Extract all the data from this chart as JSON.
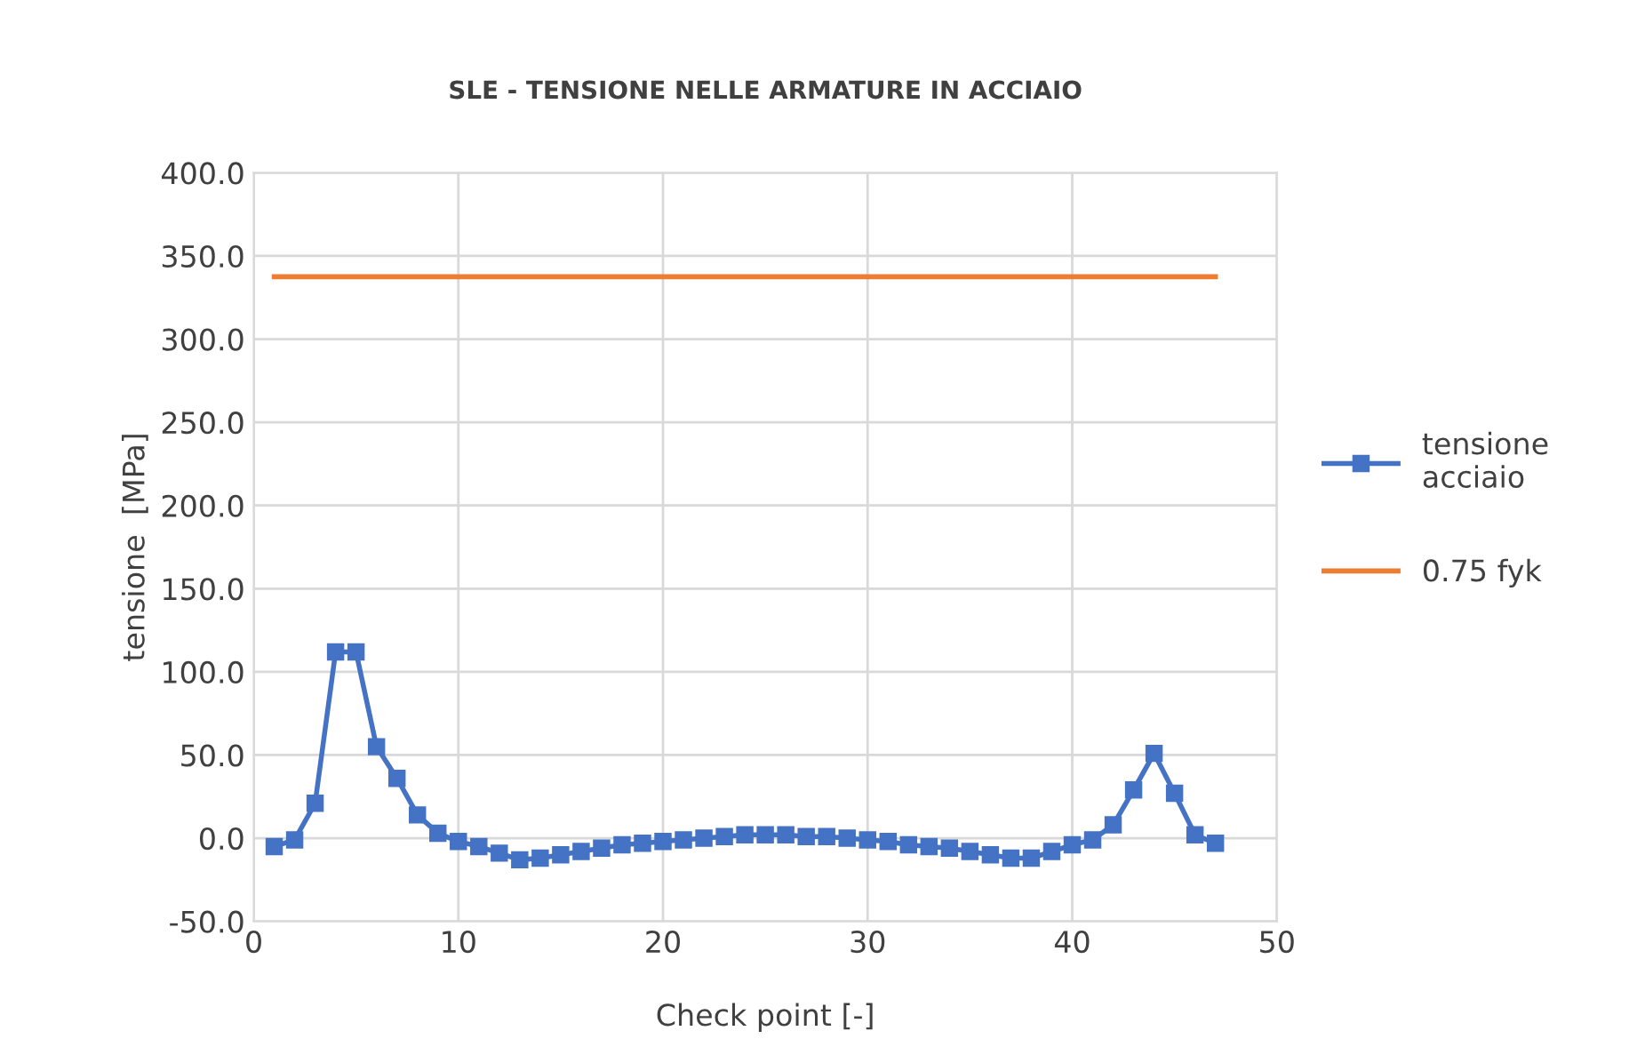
{
  "chart_data": {
    "type": "line",
    "title": "SLE - TENSIONE NELLE ARMATURE IN ACCIAIO",
    "xlabel": "Check point [-]",
    "ylabel": "tensione  [MPa]",
    "xlim": [
      0,
      50
    ],
    "xticks": [
      0,
      10,
      20,
      30,
      40,
      50
    ],
    "ylim": [
      -50,
      400
    ],
    "yticks": [
      {
        "value": -50,
        "label": "-50.0"
      },
      {
        "value": 0,
        "label": "0.0"
      },
      {
        "value": 50,
        "label": "50.0"
      },
      {
        "value": 100,
        "label": "100.0"
      },
      {
        "value": 150,
        "label": "150.0"
      },
      {
        "value": 200,
        "label": "200.0"
      },
      {
        "value": 250,
        "label": "250.0"
      },
      {
        "value": 300,
        "label": "300.0"
      },
      {
        "value": 350,
        "label": "350.0"
      },
      {
        "value": 400,
        "label": "400.0"
      }
    ],
    "grid": true,
    "legend": "right",
    "series": [
      {
        "name": "tensione\nacciaio",
        "color": "#4472c4",
        "marker": "square",
        "x": [
          1,
          2,
          3,
          4,
          5,
          6,
          7,
          8,
          9,
          10,
          11,
          12,
          13,
          14,
          15,
          16,
          17,
          18,
          19,
          20,
          21,
          22,
          23,
          24,
          25,
          26,
          27,
          28,
          29,
          30,
          31,
          32,
          33,
          34,
          35,
          36,
          37,
          38,
          39,
          40,
          41,
          42,
          43,
          44,
          45,
          46,
          47
        ],
        "values": [
          -5,
          -1,
          21,
          112,
          112,
          55,
          36,
          14,
          3,
          -2,
          -5,
          -9,
          -13,
          -12,
          -10,
          -8,
          -6,
          -4,
          -3,
          -2,
          -1,
          0,
          1,
          2,
          2,
          2,
          1,
          1,
          0,
          -1,
          -2,
          -4,
          -5,
          -6,
          -8,
          -10,
          -12,
          -12,
          -8,
          -4,
          -1,
          8,
          29,
          51,
          27,
          2,
          -3
        ]
      },
      {
        "name": "0.75 fyk",
        "color": "#ed7d31",
        "marker": "none",
        "x": [
          1,
          47
        ],
        "values": [
          337.5,
          337.5
        ]
      }
    ]
  }
}
